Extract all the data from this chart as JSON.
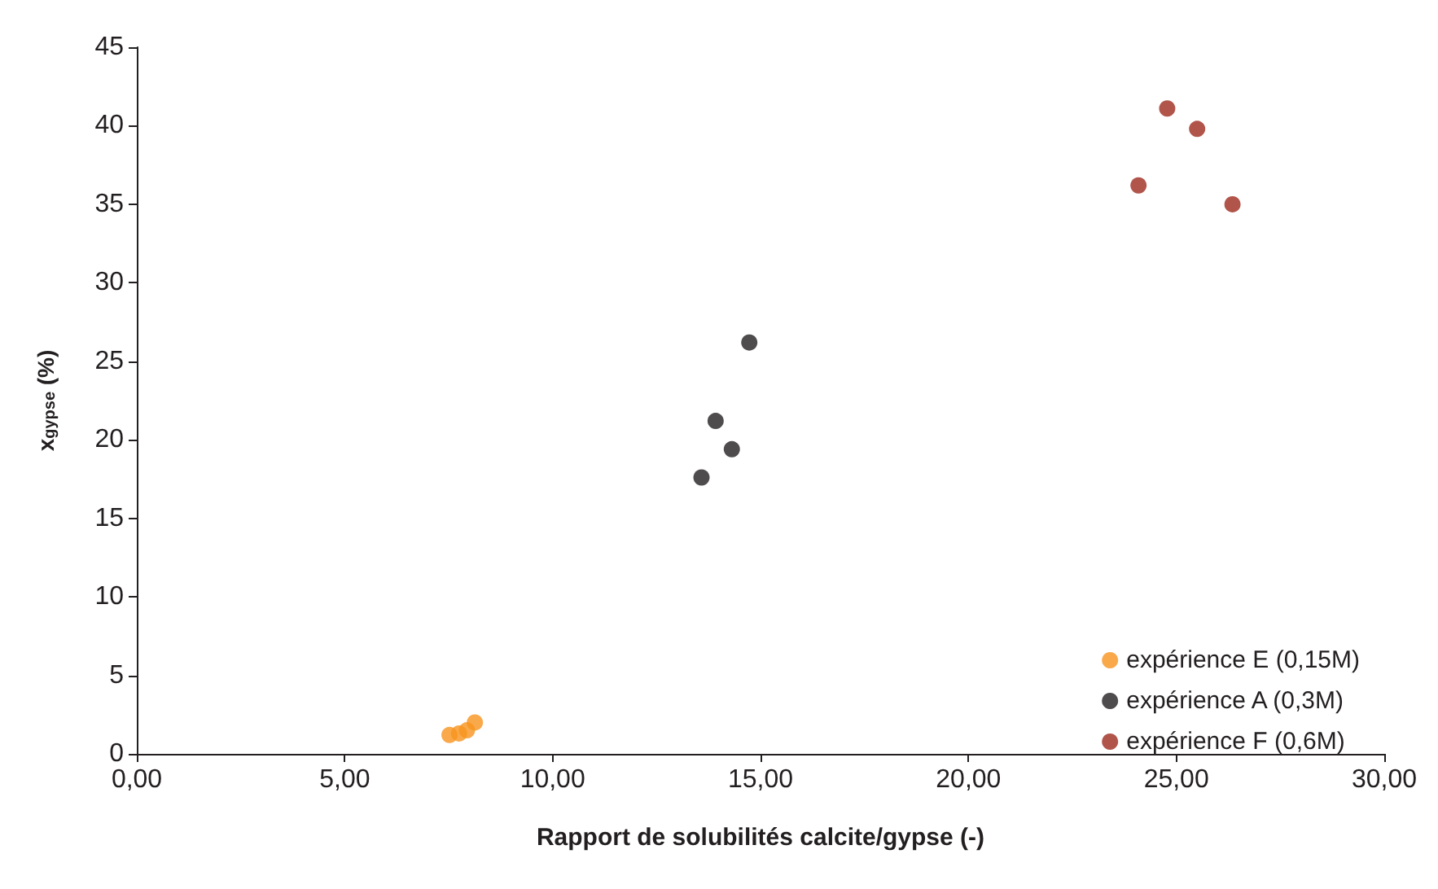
{
  "chart_data": {
    "type": "scatter",
    "xlabel": "Rapport de solubilités calcite/gypse (-)",
    "ylabel": "x$_{gypse}$ (%)",
    "xlim": [
      0,
      30
    ],
    "ylim": [
      0,
      45
    ],
    "xticks": [
      {
        "value": 0,
        "label": "0,00"
      },
      {
        "value": 5,
        "label": "5,00"
      },
      {
        "value": 10,
        "label": "10,00"
      },
      {
        "value": 15,
        "label": "15,00"
      },
      {
        "value": 20,
        "label": "20,00"
      },
      {
        "value": 25,
        "label": "25,00"
      },
      {
        "value": 30,
        "label": "30,00"
      }
    ],
    "yticks": [
      0,
      5,
      10,
      15,
      20,
      25,
      30,
      35,
      40,
      45
    ],
    "grid": false,
    "legend": "bottom right",
    "marker": "circle",
    "series": [
      {
        "name": "expérience E (0,15M)",
        "color": "#f7941d",
        "x": [
          7.52,
          7.75,
          7.94,
          8.13
        ],
        "values": [
          1.2,
          1.3,
          1.5,
          2.0
        ]
      },
      {
        "name": "expérience A (0,3M)",
        "color": "#231f20",
        "x": [
          14.73,
          13.92,
          14.31,
          13.58
        ],
        "values": [
          26.2,
          21.2,
          19.4,
          17.6
        ]
      },
      {
        "name": "expérience F (0,6M)",
        "color": "#9e2a1e",
        "x": [
          24.78,
          25.5,
          24.09,
          26.35
        ],
        "values": [
          41.1,
          39.8,
          36.2,
          35.0
        ]
      }
    ]
  }
}
